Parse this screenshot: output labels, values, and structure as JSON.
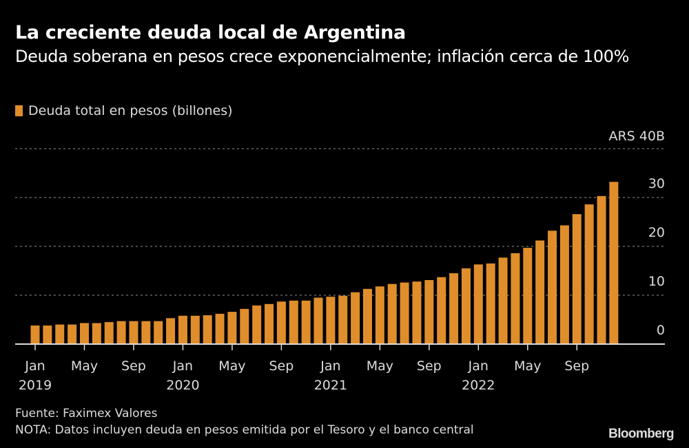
{
  "title": "La creciente deuda local de Argentina",
  "subtitle": "Deuda soberana en pesos crece exponencialmente; inflación cerca de 100%",
  "legend": {
    "label": "Deuda total en pesos (billones)",
    "color": "#e08e2b"
  },
  "footer": {
    "source": "Fuente: Faximex Valores",
    "note": "NOTA: Datos incluyen deuda en pesos emitida por el Tesoro y el banco central",
    "brand": "Bloomberg"
  },
  "chart_data": {
    "type": "bar",
    "title": "La creciente deuda local de Argentina",
    "subtitle": "Deuda soberana en pesos crece exponencialmente; inflación cerca de 100%",
    "xlabel": "",
    "ylabel": "",
    "y_unit_label": "ARS 40B",
    "ylim": [
      0,
      40
    ],
    "yticks": [
      0,
      10,
      20,
      30,
      40
    ],
    "ytick_labels": [
      "0",
      "10",
      "20",
      "30",
      "ARS 40B"
    ],
    "grid": true,
    "legend_position": "top-left",
    "bar_color": "#e08e2b",
    "xtick_labels": [
      {
        "index": 0,
        "month": "Jan",
        "year": "2019"
      },
      {
        "index": 4,
        "month": "May",
        "year": ""
      },
      {
        "index": 8,
        "month": "Sep",
        "year": ""
      },
      {
        "index": 12,
        "month": "Jan",
        "year": "2020"
      },
      {
        "index": 16,
        "month": "May",
        "year": ""
      },
      {
        "index": 20,
        "month": "Sep",
        "year": ""
      },
      {
        "index": 24,
        "month": "Jan",
        "year": "2021"
      },
      {
        "index": 28,
        "month": "May",
        "year": ""
      },
      {
        "index": 32,
        "month": "Sep",
        "year": ""
      },
      {
        "index": 36,
        "month": "Jan",
        "year": "2022"
      },
      {
        "index": 40,
        "month": "May",
        "year": ""
      },
      {
        "index": 44,
        "month": "Sep",
        "year": ""
      }
    ],
    "categories": [
      "2019-01",
      "2019-02",
      "2019-03",
      "2019-04",
      "2019-05",
      "2019-06",
      "2019-07",
      "2019-08",
      "2019-09",
      "2019-10",
      "2019-11",
      "2019-12",
      "2020-01",
      "2020-02",
      "2020-03",
      "2020-04",
      "2020-05",
      "2020-06",
      "2020-07",
      "2020-08",
      "2020-09",
      "2020-10",
      "2020-11",
      "2020-12",
      "2021-01",
      "2021-02",
      "2021-03",
      "2021-04",
      "2021-05",
      "2021-06",
      "2021-07",
      "2021-08",
      "2021-09",
      "2021-10",
      "2021-11",
      "2021-12",
      "2022-01",
      "2022-02",
      "2022-03",
      "2022-04",
      "2022-05",
      "2022-06",
      "2022-07",
      "2022-08",
      "2022-09",
      "2022-10",
      "2022-11",
      "2022-12"
    ],
    "series": [
      {
        "name": "Deuda total en pesos (billones)",
        "values": [
          3.8,
          3.8,
          4.0,
          4.0,
          4.3,
          4.3,
          4.5,
          4.7,
          4.7,
          4.7,
          4.7,
          5.3,
          5.8,
          5.8,
          5.9,
          6.2,
          6.6,
          7.2,
          7.9,
          8.2,
          8.7,
          8.9,
          8.9,
          9.5,
          9.7,
          9.9,
          10.6,
          11.3,
          11.8,
          12.3,
          12.6,
          12.8,
          13.1,
          13.7,
          14.5,
          15.5,
          16.3,
          16.5,
          17.7,
          18.6,
          19.7,
          21.2,
          23.2,
          24.3,
          26.6,
          28.6,
          30.3,
          33.2
        ]
      }
    ]
  }
}
